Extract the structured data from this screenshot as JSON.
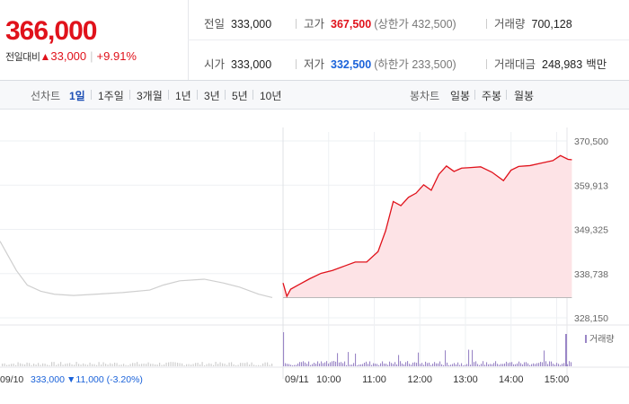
{
  "header": {
    "price": "366,000",
    "change_label": "전일대비",
    "change_arrow": "▲",
    "change_value": "33,000",
    "change_rate": "+9.91%",
    "prev_close": {
      "label": "전일",
      "value": "333,000"
    },
    "high": {
      "label": "고가",
      "value": "367,500",
      "limit_text": "(상한가 432,500)"
    },
    "volume": {
      "label": "거래량",
      "value": "700,128"
    },
    "open": {
      "label": "시가",
      "value": "333,000"
    },
    "low": {
      "label": "저가",
      "value": "332,500",
      "limit_text": "(하한가 233,500)"
    },
    "trade_value": {
      "label": "거래대금",
      "value": "248,983",
      "unit": "백만"
    }
  },
  "tabs": {
    "line_header": "선차트",
    "line_items": [
      "1일",
      "1주일",
      "3개월",
      "1년",
      "3년",
      "5년",
      "10년"
    ],
    "selected": "1일",
    "candle_header": "봉차트",
    "candle_items": [
      "일봉",
      "주봉",
      "월봉"
    ]
  },
  "colors": {
    "up": "#e0121b",
    "down": "#1a62d9",
    "today_fill": "#fde3e6",
    "prev_line": "#cfcfcf",
    "volume": "#9a86c6"
  },
  "chart_data": {
    "type": "area",
    "ylim": [
      328150,
      370500
    ],
    "y_ticks": [
      "370,500",
      "359,913",
      "349,325",
      "338,738",
      "328,150"
    ],
    "x_ticks": [
      "09/11",
      "10:00",
      "11:00",
      "12:00",
      "13:00",
      "14:00",
      "15:00"
    ],
    "grid": true,
    "base_value": 333000,
    "prev_day": {
      "label": "09/10",
      "close": "333,000",
      "change_arrow": "▼",
      "change": "11,000",
      "rate": "(-3.20%)",
      "x": [
        0,
        0.03,
        0.06,
        0.1,
        0.15,
        0.2,
        0.27,
        0.35,
        0.45,
        0.55,
        0.6,
        0.66,
        0.75,
        0.82,
        0.88,
        0.95,
        1
      ],
      "values": [
        346500,
        343000,
        339500,
        336000,
        334500,
        333800,
        333500,
        333800,
        334200,
        334800,
        336000,
        337000,
        337400,
        336500,
        335500,
        333800,
        333000
      ]
    },
    "today": {
      "label": "09/11",
      "x": [
        "09:00",
        "09:05",
        "09:10",
        "09:20",
        "09:35",
        "09:50",
        "10:05",
        "10:20",
        "10:35",
        "10:50",
        "11:05",
        "11:15",
        "11:25",
        "11:35",
        "11:45",
        "11:55",
        "12:05",
        "12:15",
        "12:25",
        "12:35",
        "12:45",
        "12:55",
        "13:05",
        "13:20",
        "13:35",
        "13:50",
        "14:00",
        "14:10",
        "14:25",
        "14:40",
        "14:55",
        "15:05",
        "15:15",
        "15:20"
      ],
      "values": [
        336500,
        333300,
        335000,
        336000,
        337500,
        338800,
        339500,
        340500,
        341500,
        341500,
        344000,
        349000,
        356000,
        355000,
        357000,
        358000,
        360000,
        358700,
        362500,
        364500,
        363200,
        364000,
        364100,
        364300,
        363000,
        361000,
        363500,
        364400,
        364600,
        365200,
        365800,
        367000,
        366100,
        366000
      ]
    },
    "volume_label": "거래량"
  }
}
